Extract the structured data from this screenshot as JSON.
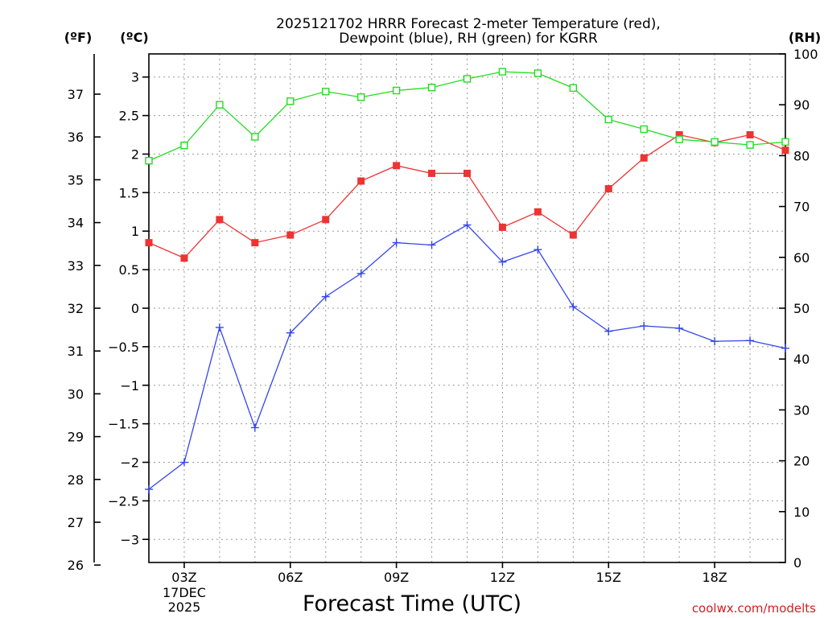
{
  "chart_data": {
    "type": "line",
    "title": [
      "2025121702 HRRR Forecast 2-meter Temperature (red),",
      "Dewpoint (blue), RH (green) for KGRR"
    ],
    "xlabel": "Forecast Time (UTC)",
    "credit": "coolwx.com/modelts",
    "units": {
      "fahrenheit": "(ºF)",
      "celsius": "(ºC)",
      "rh": "(RH)"
    },
    "x_hours": [
      2,
      3,
      4,
      5,
      6,
      7,
      8,
      9,
      10,
      11,
      12,
      13,
      14,
      15,
      16,
      17,
      18,
      19,
      20
    ],
    "xlim": [
      2,
      20
    ],
    "x_ticks": [
      {
        "hour": 3,
        "label": "03Z",
        "sub": [
          "17DEC",
          "2025"
        ]
      },
      {
        "hour": 6,
        "label": "06Z"
      },
      {
        "hour": 9,
        "label": "09Z"
      },
      {
        "hour": 12,
        "label": "12Z"
      },
      {
        "hour": 15,
        "label": "15Z"
      },
      {
        "hour": 18,
        "label": "18Z"
      }
    ],
    "celsius_axis": {
      "ylim": [
        -3.3,
        3.3
      ],
      "ticks": [
        3,
        2.5,
        2,
        1.5,
        1,
        0.5,
        0,
        -0.5,
        -1,
        -1.5,
        -2,
        -2.5,
        -3
      ],
      "tick_labels": [
        "3",
        "2.5",
        "2",
        "1.5",
        "1",
        "0.5",
        "0",
        "−0.5",
        "−1",
        "−1.5",
        "−2",
        "−2.5",
        "−3"
      ]
    },
    "fahrenheit_axis": {
      "ticks": [
        37,
        36,
        35,
        34,
        33,
        32,
        31,
        30,
        29,
        28,
        27,
        26
      ],
      "tick_labels": [
        "37",
        "36",
        "35",
        "34",
        "33",
        "32",
        "31",
        "30",
        "29",
        "28",
        "27",
        "26"
      ]
    },
    "rh_axis": {
      "ylim": [
        0,
        100
      ],
      "ticks": [
        100,
        90,
        80,
        70,
        60,
        50,
        40,
        30,
        20,
        10,
        0
      ],
      "tick_labels": [
        "100",
        "90",
        "80",
        "70",
        "60",
        "50",
        "40",
        "30",
        "20",
        "10",
        "0"
      ]
    },
    "series": [
      {
        "name": "Temperature",
        "axis": "celsius",
        "color": "#ee3333",
        "marker": "filled-square",
        "values": [
          0.85,
          0.65,
          1.15,
          0.85,
          0.95,
          1.15,
          1.65,
          1.85,
          1.75,
          1.75,
          1.05,
          1.25,
          0.95,
          1.55,
          1.95,
          2.25,
          2.15,
          2.25,
          2.05
        ]
      },
      {
        "name": "Dewpoint",
        "axis": "celsius",
        "color": "#3344ee",
        "marker": "plus",
        "values": [
          -2.35,
          -2.0,
          -0.25,
          -1.55,
          -0.32,
          0.15,
          0.45,
          0.85,
          0.82,
          1.08,
          0.6,
          0.76,
          0.02,
          -0.3,
          -0.23,
          -0.26,
          -0.43,
          -0.42,
          -0.52
        ]
      },
      {
        "name": "RH",
        "axis": "rh",
        "color": "#22dd22",
        "marker": "open-square",
        "values": [
          79,
          82,
          90,
          83.7,
          90.7,
          92.6,
          91.5,
          92.8,
          93.4,
          95.1,
          96.5,
          96.2,
          93.3,
          87.1,
          85.2,
          83.2,
          82.7,
          82.1,
          82.7
        ]
      }
    ]
  }
}
